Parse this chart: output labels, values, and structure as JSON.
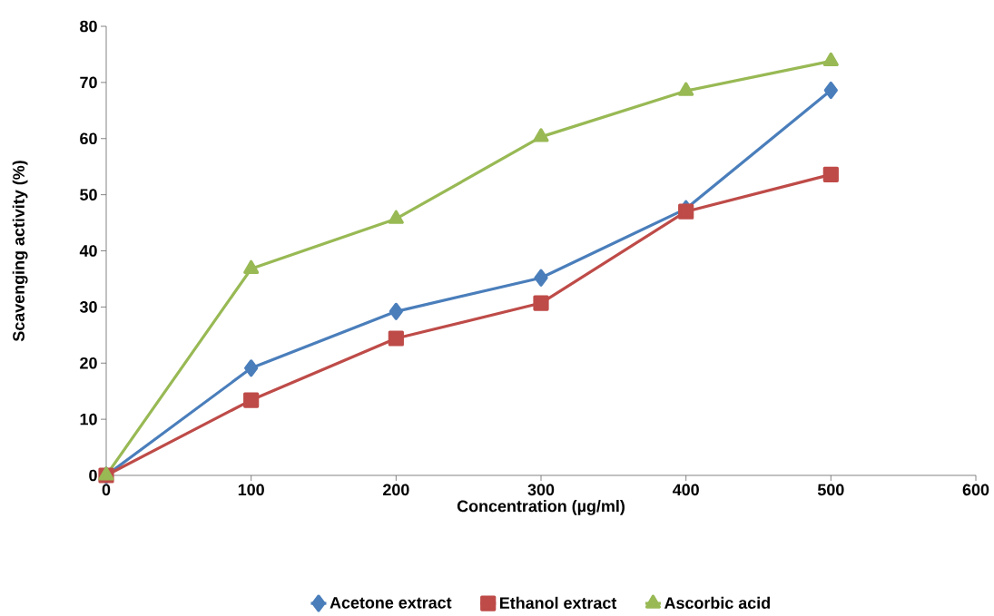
{
  "chart_data": {
    "type": "line",
    "xlabel": "Concentration (µg/ml)",
    "ylabel": "Scavenging  activity (%)",
    "x": [
      0,
      100,
      200,
      300,
      400,
      500
    ],
    "series": [
      {
        "name": "Acetone extract",
        "color": "#4a7ebb",
        "marker": "diamond",
        "values": [
          0,
          19.1,
          29.2,
          35.2,
          47.5,
          68.6
        ]
      },
      {
        "name": "Ethanol extract",
        "color": "#be4b48",
        "marker": "square",
        "values": [
          0,
          13.4,
          24.4,
          30.7,
          47.0,
          53.6
        ]
      },
      {
        "name": "Ascorbic acid",
        "color": "#98b954",
        "marker": "triangle",
        "values": [
          0,
          36.8,
          45.7,
          60.3,
          68.5,
          73.8
        ]
      }
    ],
    "xlim": [
      0,
      600
    ],
    "xticks": [
      0,
      100,
      200,
      300,
      400,
      500,
      600
    ],
    "ylim": [
      0,
      80
    ],
    "yticks": [
      0,
      10,
      20,
      30,
      40,
      50,
      60,
      70,
      80
    ],
    "grid": false,
    "legend": "bottom",
    "line_style": "solid"
  }
}
